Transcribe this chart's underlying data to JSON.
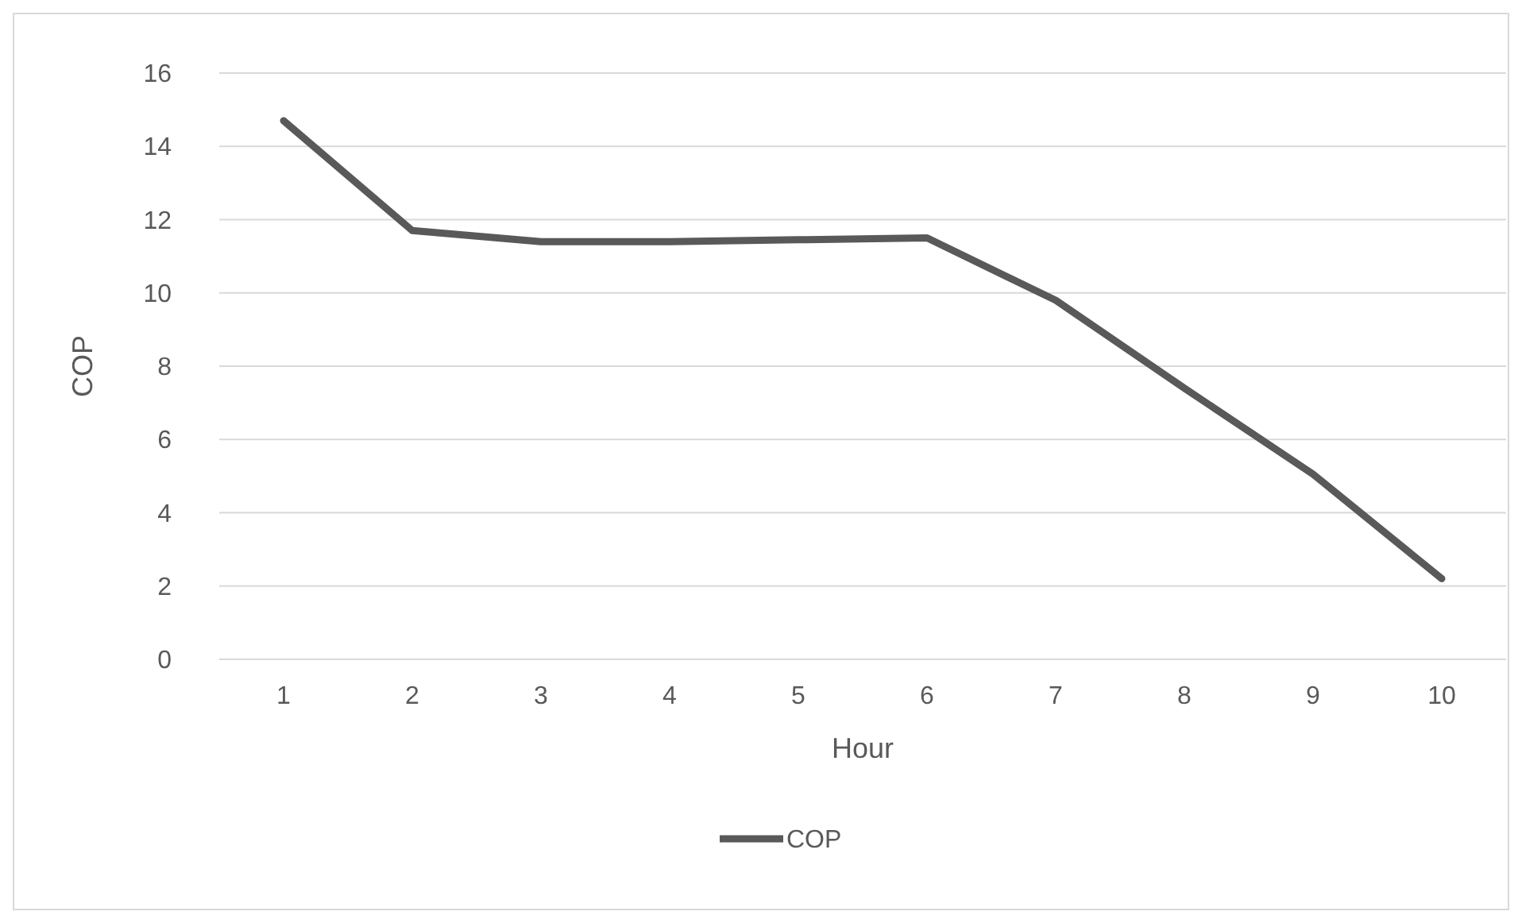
{
  "chart_data": {
    "type": "line",
    "xlabel": "Hour",
    "ylabel": "COP",
    "categories": [
      "1",
      "2",
      "3",
      "4",
      "5",
      "6",
      "7",
      "8",
      "9",
      "10"
    ],
    "series": [
      {
        "name": "COP",
        "color": "#595959",
        "values": [
          14.7,
          11.7,
          11.4,
          11.4,
          11.45,
          11.5,
          9.8,
          7.4,
          5.05,
          2.2
        ]
      }
    ],
    "ylim": [
      0,
      16
    ],
    "yticks": [
      0,
      2,
      4,
      6,
      8,
      10,
      12,
      14,
      16
    ],
    "grid": "y",
    "legend": "bottom",
    "marker": "none",
    "line_style": "solid"
  }
}
